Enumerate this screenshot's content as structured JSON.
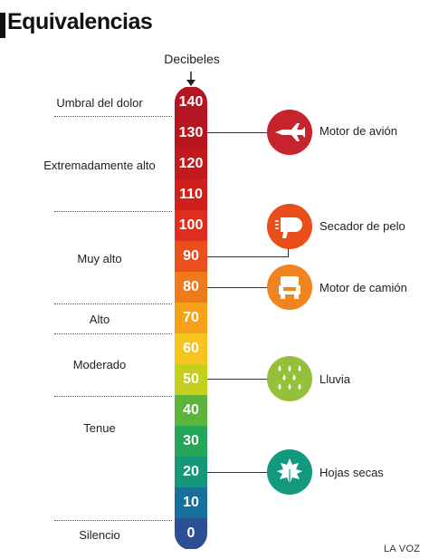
{
  "title": "Equivalencias",
  "scale_label": "Decibeles",
  "credit": "LA VOZ",
  "levels": [
    {
      "value": "140",
      "color": "#b31622"
    },
    {
      "value": "130",
      "color": "#b8161e"
    },
    {
      "value": "120",
      "color": "#c21a1c"
    },
    {
      "value": "110",
      "color": "#d0201c"
    },
    {
      "value": "100",
      "color": "#e02d1e"
    },
    {
      "value": "90",
      "color": "#ea4f1c"
    },
    {
      "value": "80",
      "color": "#f07a1a"
    },
    {
      "value": "70",
      "color": "#f5a11a"
    },
    {
      "value": "60",
      "color": "#f7c51d"
    },
    {
      "value": "50",
      "color": "#c5cf1e"
    },
    {
      "value": "40",
      "color": "#5cb43a"
    },
    {
      "value": "30",
      "color": "#23a657"
    },
    {
      "value": "20",
      "color": "#15987a"
    },
    {
      "value": "10",
      "color": "#176f9b"
    },
    {
      "value": "0",
      "color": "#2a4f95"
    }
  ],
  "categories": [
    {
      "label": "Umbral del dolor"
    },
    {
      "label": "Extremadamente alto"
    },
    {
      "label": "Muy alto"
    },
    {
      "label": "Alto"
    },
    {
      "label": "Moderado"
    },
    {
      "label": "Tenue"
    },
    {
      "label": "Silencio"
    }
  ],
  "sources": [
    {
      "label": "Motor de avión",
      "icon": "airplane-icon",
      "db": 130,
      "color": "#c8232c"
    },
    {
      "label": "Secador de pelo",
      "icon": "hair-dryer-icon",
      "db": 90,
      "color": "#e94e1b"
    },
    {
      "label": "Motor de camión",
      "icon": "truck-icon",
      "db": 80,
      "color": "#f08420"
    },
    {
      "label": "Lluvia",
      "icon": "rain-icon",
      "db": 50,
      "color": "#94c03a"
    },
    {
      "label": "Hojas secas",
      "icon": "leaf-icon",
      "db": 20,
      "color": "#139a7e"
    }
  ]
}
